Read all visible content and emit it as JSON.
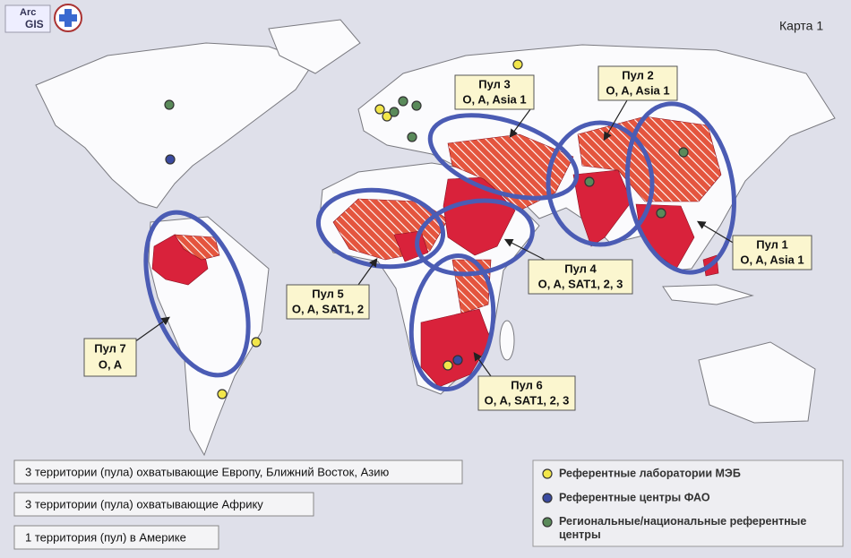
{
  "logo": {
    "arc": "Arc",
    "gis": "GIS"
  },
  "map_label": "Карта 1",
  "pools": [
    {
      "name": "Пул 1",
      "serotypes": "O, A, Asia 1"
    },
    {
      "name": "Пул 2",
      "serotypes": "O, A, Asia 1"
    },
    {
      "name": "Пул 3",
      "serotypes": "O, A, Asia 1"
    },
    {
      "name": "Пул 4",
      "serotypes": "O, A, SAT1, 2, 3"
    },
    {
      "name": "Пул 5",
      "serotypes": "O, A, SAT1, 2"
    },
    {
      "name": "Пул 6",
      "serotypes": "O, A, SAT1, 2, 3"
    },
    {
      "name": "Пул 7",
      "serotypes": "O, A"
    }
  ],
  "summary": [
    "3 территории (пула) охватывающие Европу, Ближний Восток, Азию",
    "3 территории (пула) охватывающие Африку",
    "1 территория (пул) в Америке"
  ],
  "legend": [
    {
      "label": "Референтные лаборатории МЭБ",
      "color": "#f2e64a"
    },
    {
      "label": "Референтные центры ФАО",
      "color": "#3a4aa0"
    },
    {
      "label": "Региональные/национальные референтные центры",
      "color": "#5a8a5a"
    }
  ]
}
